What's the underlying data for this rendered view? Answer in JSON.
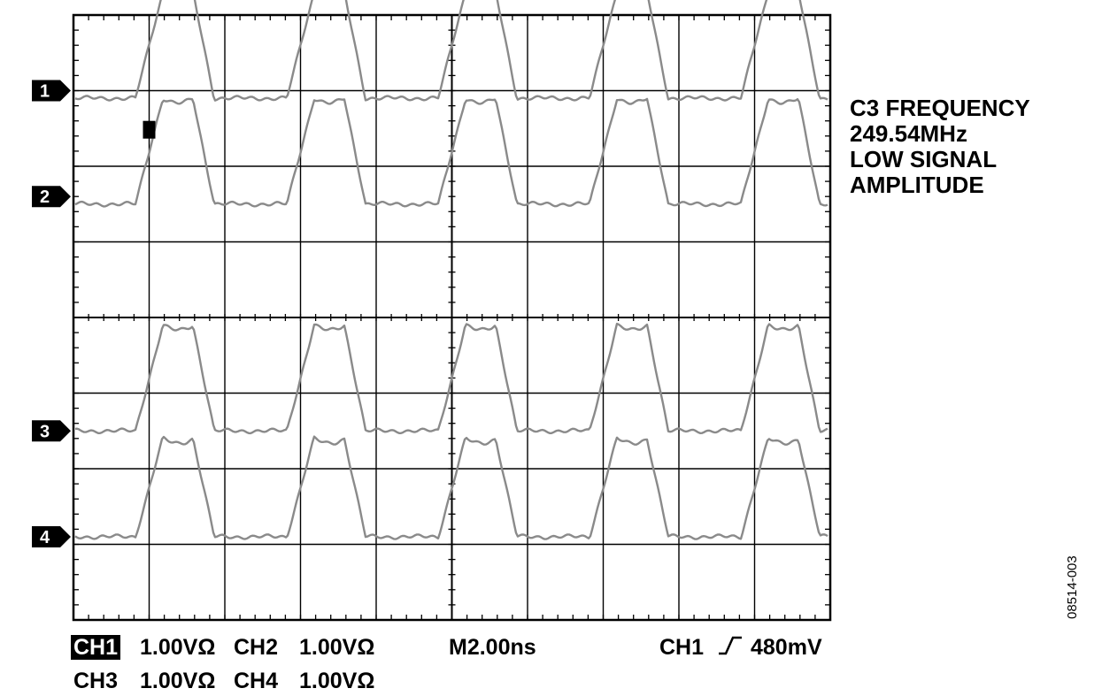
{
  "chart_data": {
    "type": "line",
    "title": "",
    "xlabel": "",
    "ylabel": "",
    "grid": true,
    "divisions": {
      "x": 10,
      "y": 8
    },
    "time_per_div_ns": 2.0,
    "volts_per_div": 1.0,
    "signal_period_ns": 4.0,
    "trigger_channel": "CH1",
    "trigger_level_mV": 480,
    "series": [
      {
        "name": "1",
        "ground_div": 3.0,
        "low_div": -0.1,
        "high_div": 1.3
      },
      {
        "name": "2",
        "ground_div": 1.6,
        "low_div": -0.1,
        "high_div": 1.3
      },
      {
        "name": "3",
        "ground_div": -1.5,
        "low_div": 0.0,
        "high_div": 1.4
      },
      {
        "name": "4",
        "ground_div": -2.9,
        "low_div": 0.0,
        "high_div": 1.3
      }
    ]
  },
  "markers": [
    {
      "label": "1"
    },
    {
      "label": "2"
    },
    {
      "label": "3"
    },
    {
      "label": "4"
    }
  ],
  "measurement": {
    "line1": "C3 FREQUENCY",
    "line2": "249.54MHz",
    "line3": "LOW SIGNAL",
    "line4": "AMPLITUDE"
  },
  "readouts": {
    "ch1_label": "CH1",
    "ch1_scale": "1.00VΩ",
    "ch2_label": "CH2",
    "ch2_scale": "1.00VΩ",
    "ch3_label": "CH3",
    "ch3_scale": "1.00VΩ",
    "ch4_label": "CH4",
    "ch4_scale": "1.00VΩ",
    "timebase": "M2.00ns",
    "trigger_ch": "CH1",
    "trigger_level": "480mV"
  },
  "figure_id": "08514-003",
  "colors": {
    "trace": "#8a8a8a",
    "grid": "#000000",
    "background": "#ffffff"
  }
}
